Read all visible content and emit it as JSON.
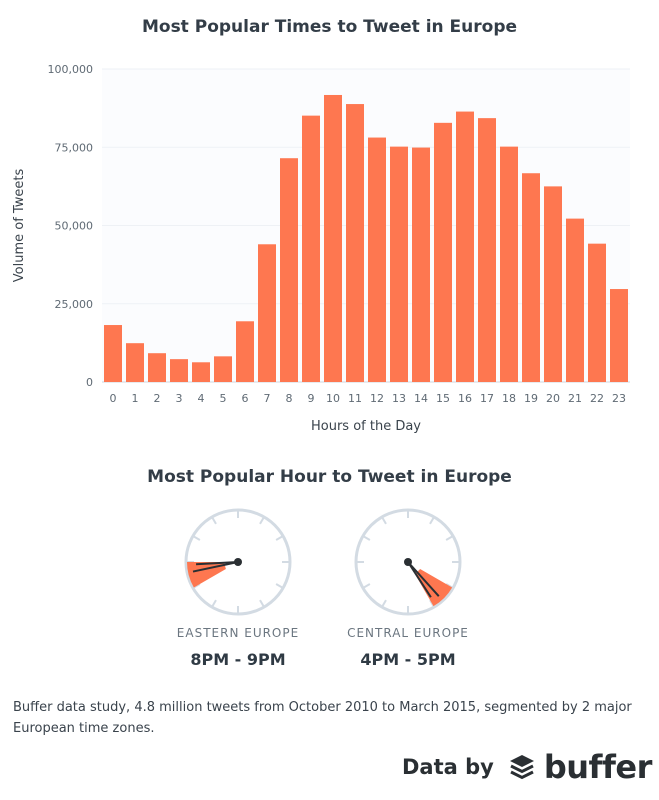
{
  "chart_data": {
    "type": "bar",
    "title": "Most Popular Times to Tweet in Europe",
    "xlabel": "Hours of the Day",
    "ylabel": "Volume of Tweets",
    "ylim": [
      0,
      100000
    ],
    "yticks": [
      "0",
      "25,000",
      "50,000",
      "75,000",
      "100,000"
    ],
    "ytick_values": [
      0,
      25000,
      50000,
      75000,
      100000
    ],
    "grid": true,
    "categories": [
      "0",
      "1",
      "2",
      "3",
      "4",
      "5",
      "6",
      "7",
      "8",
      "9",
      "10",
      "11",
      "12",
      "13",
      "14",
      "15",
      "16",
      "17",
      "18",
      "19",
      "20",
      "21",
      "22",
      "23"
    ],
    "values": [
      18200,
      12400,
      9200,
      7300,
      6300,
      8200,
      19400,
      44000,
      71500,
      85100,
      91700,
      88800,
      78100,
      75200,
      74900,
      82800,
      86400,
      84300,
      75200,
      66700,
      62500,
      52200,
      44200,
      29700
    ],
    "bar_color": "#fe7750"
  },
  "clocks": {
    "title": "Most Popular Hour to Tweet in Europe",
    "items": [
      {
        "region": "EASTERN EUROPE",
        "time": "8PM - 9PM",
        "start_hour": 8,
        "end_hour": 9
      },
      {
        "region": "CENTRAL EUROPE",
        "time": "4PM - 5PM",
        "start_hour": 4,
        "end_hour": 5
      }
    ],
    "wedge_color": "#fe7750",
    "face_color": "#d3dbe3"
  },
  "footer": {
    "note": "Buffer data study, 4.8 million tweets from October 2010 to March 2015, segmented by 2 major European time zones.",
    "credit": "Data by",
    "brand": "buffer"
  }
}
